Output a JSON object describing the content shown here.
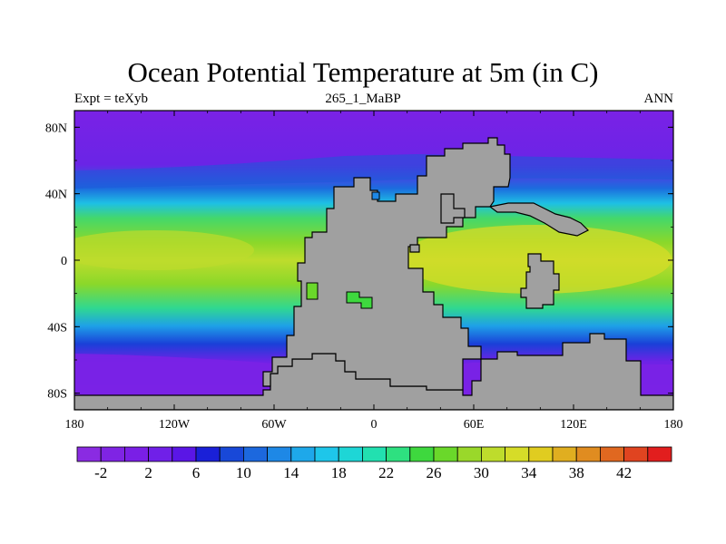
{
  "title": "Ocean Potential Temperature at 5m (in C)",
  "left_label": "Expt = teXyb",
  "center_label": "265_1_MaBP",
  "right_label": "ANN",
  "map": {
    "x_ticks": [
      {
        "label": "180",
        "lon": -180
      },
      {
        "label": "120W",
        "lon": -120
      },
      {
        "label": "60W",
        "lon": -60
      },
      {
        "label": "0",
        "lon": 0
      },
      {
        "label": "60E",
        "lon": 60
      },
      {
        "label": "120E",
        "lon": 120
      },
      {
        "label": "180",
        "lon": 180
      }
    ],
    "y_ticks": [
      {
        "label": "80N",
        "lat": 80
      },
      {
        "label": "40N",
        "lat": 40
      },
      {
        "label": "0",
        "lat": 0
      },
      {
        "label": "40S",
        "lat": -40
      },
      {
        "label": "80S",
        "lat": -80
      }
    ],
    "lon_range": [
      -180,
      180
    ],
    "lat_range": [
      -90,
      90
    ]
  },
  "colorbar": {
    "colors": [
      "#8a2be2",
      "#7f24e4",
      "#7a1fe6",
      "#7020e8",
      "#5a16e6",
      "#1a20d8",
      "#1848d8",
      "#1c68de",
      "#1e88e6",
      "#1ea8ea",
      "#1ec6ea",
      "#1ed6d6",
      "#22e0b0",
      "#2ee080",
      "#3ed83e",
      "#6ad82a",
      "#9ad82a",
      "#bedc2c",
      "#d6dc28",
      "#e0cc20",
      "#e0ae20",
      "#e08c20",
      "#e06820",
      "#e04420",
      "#e21e1e"
    ],
    "labels": [
      {
        "label": "-2",
        "index": 1
      },
      {
        "label": "2",
        "index": 3
      },
      {
        "label": "6",
        "index": 5
      },
      {
        "label": "10",
        "index": 7
      },
      {
        "label": "14",
        "index": 9
      },
      {
        "label": "18",
        "index": 11
      },
      {
        "label": "22",
        "index": 13
      },
      {
        "label": "26",
        "index": 15
      },
      {
        "label": "30",
        "index": 17
      },
      {
        "label": "34",
        "index": 19
      },
      {
        "label": "38",
        "index": 21
      },
      {
        "label": "42",
        "index": 23
      }
    ]
  }
}
